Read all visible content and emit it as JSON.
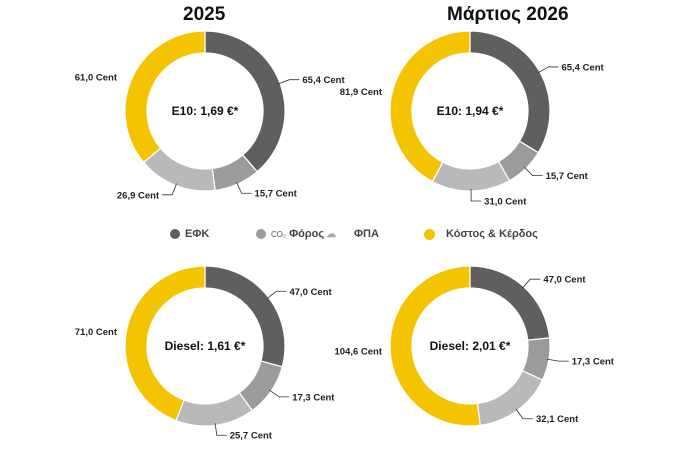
{
  "column_titles": {
    "left": "2025",
    "right": "Μάρτιος 2026"
  },
  "legend": {
    "items": [
      {
        "label": "ΕΦΚ",
        "color": "#5f5f5f"
      },
      {
        "prefix": "CO₂",
        "label": "Φόρος",
        "color": "#9b9b9b"
      },
      {
        "label": "ΦΠΑ",
        "color": "#b9b9b9"
      },
      {
        "label": "Κόστος & Κέρδος",
        "color": "#f5c400"
      }
    ]
  },
  "chart_data": [
    {
      "type": "pie",
      "variant": "donut",
      "title": "E10: 1,69 €*",
      "column": "2025",
      "categories": [
        "ΕΦΚ",
        "CO₂ Φόρος",
        "ΦΠΑ",
        "Κόστος & Κέρδος"
      ],
      "values": [
        65.4,
        15.7,
        26.9,
        61.0
      ],
      "labels": [
        "65,4 Cent",
        "15,7 Cent",
        "26,9 Cent",
        "61,0 Cent"
      ]
    },
    {
      "type": "pie",
      "variant": "donut",
      "title": "E10: 1,94 €*",
      "column": "Μάρτιος 2026",
      "categories": [
        "ΕΦΚ",
        "CO₂ Φόρος",
        "ΦΠΑ",
        "Κόστος & Κέρδος"
      ],
      "values": [
        65.4,
        15.7,
        31.0,
        81.9
      ],
      "labels": [
        "65,4 Cent",
        "15,7 Cent",
        "31,0 Cent",
        "81,9 Cent"
      ]
    },
    {
      "type": "pie",
      "variant": "donut",
      "title": "Diesel: 1,61 €*",
      "column": "2025",
      "categories": [
        "ΕΦΚ",
        "CO₂ Φόρος",
        "ΦΠΑ",
        "Κόστος & Κέρδος"
      ],
      "values": [
        47.0,
        17.3,
        25.7,
        71.0
      ],
      "labels": [
        "47,0 Cent",
        "17,3 Cent",
        "25,7 Cent",
        "71,0 Cent"
      ]
    },
    {
      "type": "pie",
      "variant": "donut",
      "title": "Diesel: 2,01 €*",
      "column": "Μάρτιος 2026",
      "categories": [
        "ΕΦΚ",
        "CO₂ Φόρος",
        "ΦΠΑ",
        "Κόστος & Κέρδος"
      ],
      "values": [
        47.0,
        17.3,
        32.1,
        104.6
      ],
      "labels": [
        "47,0 Cent",
        "17,3 Cent",
        "32,1 Cent",
        "104,6 Cent"
      ]
    }
  ]
}
